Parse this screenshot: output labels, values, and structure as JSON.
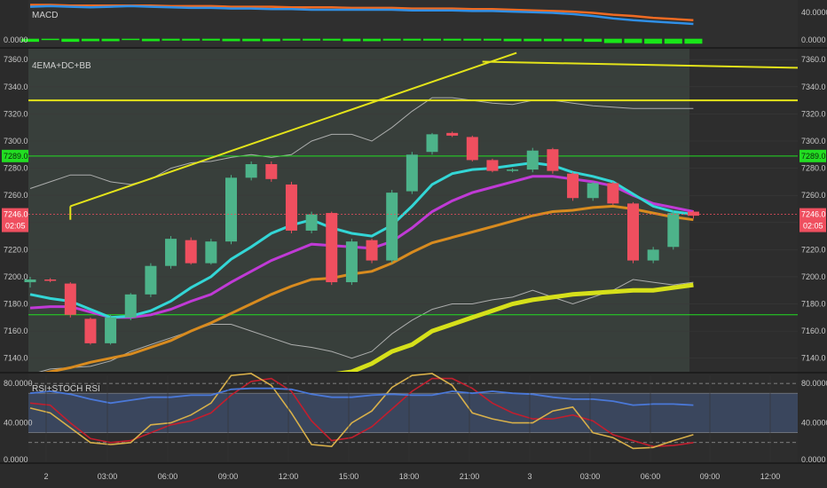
{
  "colors": {
    "background": "#2b2b2b",
    "up_candle": "#4db38a",
    "down_candle": "#ef4f5f",
    "ema_fast": "#33d6d6",
    "ema_mid": "#c03ad6",
    "ema_slow": "#d88b1f",
    "ema_long": "#d6e01a",
    "trendline": "#e3e31a",
    "level_green": "#22dd22",
    "macd_line": "#2f8fe6",
    "signal_line": "#ef6a22",
    "macd_hist": "#19e619",
    "rsi_line": "#4a78d8",
    "stoch_k": "#d8b04a",
    "stoch_d": "#c21e2e"
  },
  "macd_pane": {
    "label": "MACD",
    "left_ticks": [
      "0.0000"
    ],
    "right_ticks": [
      "40.0000",
      "0.0000"
    ]
  },
  "price_pane": {
    "label": "4EMA+DC+BB",
    "left_ticks": [
      "7360.0",
      "7340.0",
      "7320.0",
      "7300.0",
      "7280.0",
      "7260.0",
      "7240.0",
      "7220.0",
      "7200.0",
      "7180.0",
      "7160.0",
      "7140.0"
    ],
    "right_ticks": [
      "7360.0",
      "7340.0",
      "7320.0",
      "7300.0",
      "7280.0",
      "7260.0",
      "7240.0",
      "7220.0",
      "7200.0",
      "7180.0",
      "7160.0",
      "7140.0"
    ],
    "level_tag": "7289.0",
    "price_tag": "7246.0",
    "countdown_tag": "02:05"
  },
  "rsi_pane": {
    "label": "RSI+STOCH RSI",
    "left_ticks": [
      "80.0000",
      "40.0000",
      "0.0000"
    ],
    "right_ticks": [
      "80.0000",
      "40.0000",
      "0.0000"
    ]
  },
  "time_axis": [
    "2",
    "03:00",
    "06:00",
    "09:00",
    "12:00",
    "15:00",
    "18:00",
    "21:00",
    "3",
    "03:00",
    "06:00",
    "09:00",
    "12:00"
  ],
  "chart_data": {
    "type": "candlestick",
    "ylim": [
      7130,
      7368
    ],
    "candles": [
      {
        "o": 7196,
        "h": 7200,
        "l": 7192,
        "c": 7198
      },
      {
        "o": 7198,
        "h": 7199,
        "l": 7196,
        "c": 7197
      },
      {
        "o": 7195,
        "h": 7196,
        "l": 7170,
        "c": 7172
      },
      {
        "o": 7169,
        "h": 7170,
        "l": 7150,
        "c": 7151
      },
      {
        "o": 7151,
        "h": 7172,
        "l": 7150,
        "c": 7170
      },
      {
        "o": 7170,
        "h": 7188,
        "l": 7168,
        "c": 7187
      },
      {
        "o": 7187,
        "h": 7210,
        "l": 7185,
        "c": 7208
      },
      {
        "o": 7208,
        "h": 7230,
        "l": 7206,
        "c": 7228
      },
      {
        "o": 7227,
        "h": 7229,
        "l": 7209,
        "c": 7210
      },
      {
        "o": 7210,
        "h": 7228,
        "l": 7209,
        "c": 7226
      },
      {
        "o": 7226,
        "h": 7275,
        "l": 7224,
        "c": 7273
      },
      {
        "o": 7273,
        "h": 7285,
        "l": 7271,
        "c": 7283
      },
      {
        "o": 7283,
        "h": 7285,
        "l": 7270,
        "c": 7272
      },
      {
        "o": 7268,
        "h": 7270,
        "l": 7232,
        "c": 7234
      },
      {
        "o": 7234,
        "h": 7248,
        "l": 7232,
        "c": 7246
      },
      {
        "o": 7247,
        "h": 7248,
        "l": 7194,
        "c": 7196
      },
      {
        "o": 7196,
        "h": 7228,
        "l": 7194,
        "c": 7226
      },
      {
        "o": 7227,
        "h": 7228,
        "l": 7210,
        "c": 7212
      },
      {
        "o": 7212,
        "h": 7264,
        "l": 7210,
        "c": 7262
      },
      {
        "o": 7263,
        "h": 7292,
        "l": 7261,
        "c": 7290
      },
      {
        "o": 7292,
        "h": 7306,
        "l": 7290,
        "c": 7305
      },
      {
        "o": 7306,
        "h": 7307,
        "l": 7303,
        "c": 7304
      },
      {
        "o": 7303,
        "h": 7304,
        "l": 7285,
        "c": 7286
      },
      {
        "o": 7286,
        "h": 7287,
        "l": 7277,
        "c": 7278
      },
      {
        "o": 7279,
        "h": 7280,
        "l": 7277,
        "c": 7279
      },
      {
        "o": 7279,
        "h": 7295,
        "l": 7277,
        "c": 7293
      },
      {
        "o": 7294,
        "h": 7295,
        "l": 7276,
        "c": 7278
      },
      {
        "o": 7276,
        "h": 7277,
        "l": 7256,
        "c": 7258
      },
      {
        "o": 7258,
        "h": 7270,
        "l": 7256,
        "c": 7269
      },
      {
        "o": 7269,
        "h": 7270,
        "l": 7253,
        "c": 7254
      },
      {
        "o": 7254,
        "h": 7255,
        "l": 7210,
        "c": 7212
      },
      {
        "o": 7212,
        "h": 7222,
        "l": 7210,
        "c": 7220
      },
      {
        "o": 7222,
        "h": 7249,
        "l": 7220,
        "c": 7247
      },
      {
        "o": 7248,
        "h": 7249,
        "l": 7243,
        "c": 7245
      }
    ],
    "horizontal_levels": [
      7330,
      7289,
      7172
    ],
    "bb_upper": [
      7265,
      7270,
      7275,
      7275,
      7270,
      7268,
      7272,
      7280,
      7284,
      7285,
      7288,
      7290,
      7288,
      7290,
      7300,
      7305,
      7305,
      7300,
      7310,
      7322,
      7332,
      7332,
      7330,
      7328,
      7327,
      7330,
      7330,
      7328,
      7326,
      7325,
      7324,
      7324,
      7324,
      7324
    ],
    "bb_lower": [
      7128,
      7132,
      7133,
      7134,
      7138,
      7145,
      7150,
      7155,
      7160,
      7165,
      7165,
      7160,
      7155,
      7150,
      7148,
      7145,
      7140,
      7145,
      7158,
      7168,
      7176,
      7180,
      7180,
      7183,
      7185,
      7190,
      7185,
      7180,
      7185,
      7190,
      7198,
      7196,
      7194,
      7196
    ],
    "ema_fast": [
      7187,
      7184,
      7182,
      7176,
      7170,
      7171,
      7175,
      7182,
      7192,
      7200,
      7213,
      7222,
      7232,
      7238,
      7242,
      7236,
      7232,
      7230,
      7238,
      7252,
      7268,
      7276,
      7279,
      7280,
      7282,
      7284,
      7282,
      7277,
      7274,
      7270,
      7261,
      7252,
      7248,
      7246
    ],
    "ema_mid": [
      7177,
      7178,
      7178,
      7174,
      7170,
      7170,
      7172,
      7176,
      7182,
      7187,
      7196,
      7204,
      7212,
      7218,
      7224,
      7223,
      7222,
      7221,
      7226,
      7236,
      7248,
      7256,
      7262,
      7266,
      7270,
      7274,
      7274,
      7272,
      7270,
      7267,
      7260,
      7254,
      7251,
      7248
    ],
    "ema_slow": [
      7127,
      7130,
      7133,
      7137,
      7140,
      7143,
      7148,
      7153,
      7160,
      7166,
      7173,
      7180,
      7187,
      7193,
      7198,
      7199,
      7202,
      7204,
      7210,
      7218,
      7225,
      7229,
      7233,
      7237,
      7241,
      7245,
      7248,
      7249,
      7251,
      7252,
      7250,
      7247,
      7244,
      7242
    ],
    "ema_long": [
      7110,
      7110,
      7110,
      7110,
      7110,
      7110,
      7110,
      7110,
      7110,
      7110,
      7110,
      7112,
      7113,
      7120,
      7125,
      7128,
      7130,
      7136,
      7145,
      7150,
      7160,
      7165,
      7170,
      7175,
      7180,
      7183,
      7185,
      7187,
      7188,
      7189,
      7190,
      7190,
      7192,
      7194
    ],
    "macd": {
      "ylim": [
        -12,
        60
      ],
      "macd": [
        52,
        53,
        52,
        51,
        52,
        53,
        52,
        51,
        50,
        50,
        49,
        49,
        48,
        48,
        47,
        47,
        47,
        47,
        47,
        46,
        46,
        46,
        45,
        45,
        44,
        43,
        42,
        40,
        37,
        33,
        30,
        28,
        26,
        24
      ],
      "signal": [
        55,
        55,
        54,
        54,
        54,
        54,
        54,
        53,
        53,
        53,
        52,
        52,
        52,
        51,
        51,
        51,
        50,
        50,
        50,
        49,
        49,
        49,
        48,
        48,
        47,
        46,
        45,
        44,
        42,
        39,
        37,
        34,
        32,
        30
      ],
      "histogram": [
        -5,
        -2,
        -5,
        -4,
        -4,
        -2,
        -4,
        -3,
        -3,
        -3,
        -4,
        -4,
        -4,
        -3,
        -3,
        -3,
        -4,
        -4,
        -3,
        -3,
        -3,
        -3,
        -3,
        -3,
        -4,
        -4,
        -4,
        -4,
        -5,
        -7,
        -7,
        -8,
        -8,
        -8
      ]
    },
    "rsi": {
      "ylim": [
        0,
        90
      ],
      "upper_band": 80,
      "lower_band": 20,
      "rsi": [
        70,
        72,
        69,
        64,
        60,
        63,
        66,
        66,
        68,
        68,
        74,
        75,
        75,
        74,
        69,
        66,
        66,
        68,
        69,
        68,
        68,
        72,
        70,
        72,
        70,
        69,
        66,
        64,
        64,
        62,
        58,
        59,
        59,
        58
      ],
      "stoch_k": [
        55,
        50,
        35,
        20,
        18,
        20,
        38,
        40,
        48,
        60,
        88,
        90,
        78,
        50,
        18,
        16,
        40,
        52,
        76,
        88,
        90,
        78,
        50,
        44,
        40,
        40,
        52,
        56,
        30,
        25,
        14,
        15,
        22,
        28
      ],
      "stoch_d": [
        60,
        58,
        40,
        24,
        20,
        22,
        30,
        38,
        42,
        50,
        68,
        82,
        85,
        72,
        42,
        22,
        25,
        36,
        54,
        72,
        85,
        85,
        75,
        60,
        50,
        44,
        44,
        48,
        42,
        28,
        22,
        16,
        17,
        20
      ]
    }
  }
}
